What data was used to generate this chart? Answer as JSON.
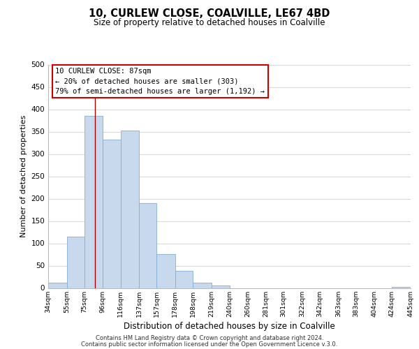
{
  "title": "10, CURLEW CLOSE, COALVILLE, LE67 4BD",
  "subtitle": "Size of property relative to detached houses in Coalville",
  "xlabel": "Distribution of detached houses by size in Coalville",
  "ylabel": "Number of detached properties",
  "bar_color": "#c8d9ed",
  "bar_edge_color": "#85aed4",
  "annotation_box_edge": "#cc0000",
  "annotation_box_facecolor": "#ffffff",
  "vertical_line_color": "#aa0000",
  "vertical_line_x": 87,
  "annotation_line1": "10 CURLEW CLOSE: 87sqm",
  "annotation_line2": "← 20% of detached houses are smaller (303)",
  "annotation_line3": "79% of semi-detached houses are larger (1,192) →",
  "bin_edges": [
    34,
    55,
    75,
    96,
    116,
    137,
    157,
    178,
    198,
    219,
    240,
    260,
    281,
    301,
    322,
    342,
    363,
    383,
    404,
    424,
    445
  ],
  "bar_heights": [
    12,
    115,
    385,
    332,
    352,
    190,
    76,
    38,
    12,
    5,
    0,
    0,
    0,
    0,
    0,
    0,
    0,
    0,
    0,
    2
  ],
  "ylim": [
    0,
    500
  ],
  "yticks": [
    0,
    50,
    100,
    150,
    200,
    250,
    300,
    350,
    400,
    450,
    500
  ],
  "footer_line1": "Contains HM Land Registry data © Crown copyright and database right 2024.",
  "footer_line2": "Contains public sector information licensed under the Open Government Licence v.3.0.",
  "background_color": "#ffffff",
  "grid_color": "#cdd8e8"
}
